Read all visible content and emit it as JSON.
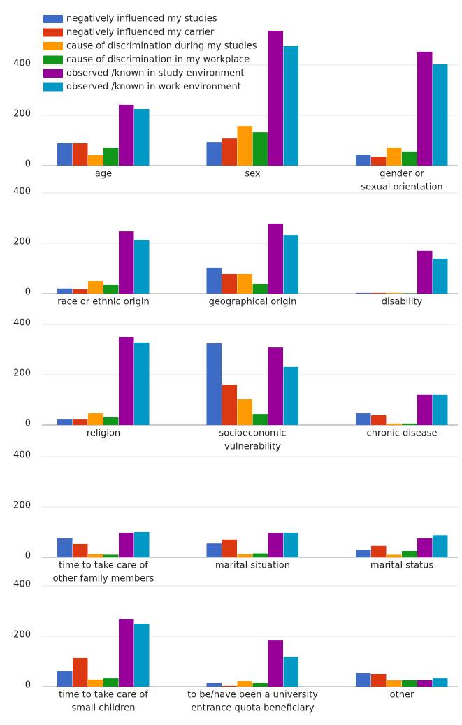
{
  "chart_data": {
    "type": "bar",
    "categories": [
      [
        "age"
      ],
      [
        "sex"
      ],
      [
        "gender or",
        "sexual orientation"
      ],
      [
        "race or ethnic origin"
      ],
      [
        "geographical origin"
      ],
      [
        "disability"
      ],
      [
        "religion"
      ],
      [
        "socioeconomic",
        "vulnerability"
      ],
      [
        "chronic disease"
      ],
      [
        "time to take care of",
        "other family members"
      ],
      [
        "marital situation"
      ],
      [
        "marital status"
      ],
      [
        "time to take care of",
        "small children"
      ],
      [
        "to be/have been a university",
        "entrance quota beneficiary"
      ],
      [
        "other"
      ]
    ],
    "series": [
      {
        "name": "negatively influenced my studies",
        "color": "#3e6bc6",
        "values": [
          89,
          94,
          44,
          20,
          103,
          3,
          22,
          325,
          47,
          75,
          55,
          30,
          61,
          14,
          53
        ]
      },
      {
        "name": "negatively influenced my carrier",
        "color": "#dc3912",
        "values": [
          89,
          108,
          36,
          17,
          78,
          3,
          22,
          161,
          39,
          53,
          70,
          45,
          114,
          3,
          50
        ]
      },
      {
        "name": "cause of discrimination during my studies",
        "color": "#ff9900",
        "values": [
          42,
          158,
          72,
          50,
          78,
          3,
          47,
          103,
          6,
          12,
          12,
          10,
          28,
          22,
          25
        ]
      },
      {
        "name": "cause of discrimination in my workplace",
        "color": "#109618",
        "values": [
          72,
          133,
          56,
          36,
          39,
          2,
          31,
          44,
          6,
          10,
          15,
          25,
          33,
          14,
          25
        ]
      },
      {
        "name": "observed /known  in study environment",
        "color": "#990099",
        "values": [
          242,
          536,
          453,
          247,
          278,
          170,
          350,
          308,
          120,
          97,
          97,
          75,
          267,
          183,
          25
        ]
      },
      {
        "name": "observed /known  in work environment",
        "color": "#0099c6",
        "values": [
          225,
          475,
          403,
          214,
          233,
          139,
          328,
          231,
          120,
          100,
          97,
          88,
          250,
          117,
          33
        ]
      }
    ],
    "ylim": [
      0,
      560
    ],
    "yticks": [
      0,
      200,
      400
    ],
    "grid": true
  }
}
